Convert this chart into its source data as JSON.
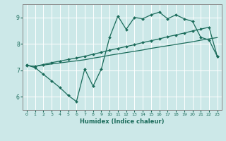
{
  "xlabel": "Humidex (Indice chaleur)",
  "bg_color": "#cce8e8",
  "grid_color": "#ffffff",
  "line_color": "#1a6b5a",
  "xlim": [
    -0.5,
    23.5
  ],
  "ylim": [
    5.5,
    9.5
  ],
  "xticks": [
    0,
    1,
    2,
    3,
    4,
    5,
    6,
    7,
    8,
    9,
    10,
    11,
    12,
    13,
    14,
    15,
    16,
    17,
    18,
    19,
    20,
    21,
    22,
    23
  ],
  "yticks": [
    6,
    7,
    8,
    9
  ],
  "line1_x": [
    0,
    1,
    2,
    3,
    4,
    5,
    6,
    7,
    8,
    9,
    10,
    11,
    12,
    13,
    14,
    15,
    16,
    17,
    18,
    19,
    20,
    21,
    22,
    23
  ],
  "line1_y": [
    7.2,
    7.1,
    6.85,
    6.6,
    6.35,
    6.05,
    5.82,
    7.05,
    6.4,
    7.05,
    8.25,
    9.05,
    8.55,
    9.0,
    8.95,
    9.1,
    9.2,
    8.95,
    9.1,
    8.95,
    8.85,
    8.25,
    8.15,
    7.52
  ],
  "line2_x": [
    0,
    1,
    2,
    3,
    4,
    5,
    6,
    7,
    8,
    9,
    10,
    11,
    12,
    13,
    14,
    15,
    16,
    17,
    18,
    19,
    20,
    21,
    22,
    23
  ],
  "line2_y": [
    7.18,
    7.15,
    7.2,
    7.24,
    7.28,
    7.32,
    7.36,
    7.4,
    7.46,
    7.51,
    7.57,
    7.62,
    7.67,
    7.72,
    7.77,
    7.83,
    7.88,
    7.93,
    7.98,
    8.03,
    8.08,
    8.14,
    8.19,
    8.24
  ],
  "line3_x": [
    0,
    1,
    2,
    3,
    4,
    5,
    6,
    7,
    8,
    9,
    10,
    11,
    12,
    13,
    14,
    15,
    16,
    17,
    18,
    19,
    20,
    21,
    22,
    23
  ],
  "line3_y": [
    7.18,
    7.15,
    7.22,
    7.29,
    7.35,
    7.41,
    7.47,
    7.53,
    7.61,
    7.68,
    7.76,
    7.83,
    7.9,
    7.97,
    8.05,
    8.12,
    8.19,
    8.27,
    8.34,
    8.41,
    8.49,
    8.56,
    8.63,
    7.52
  ]
}
